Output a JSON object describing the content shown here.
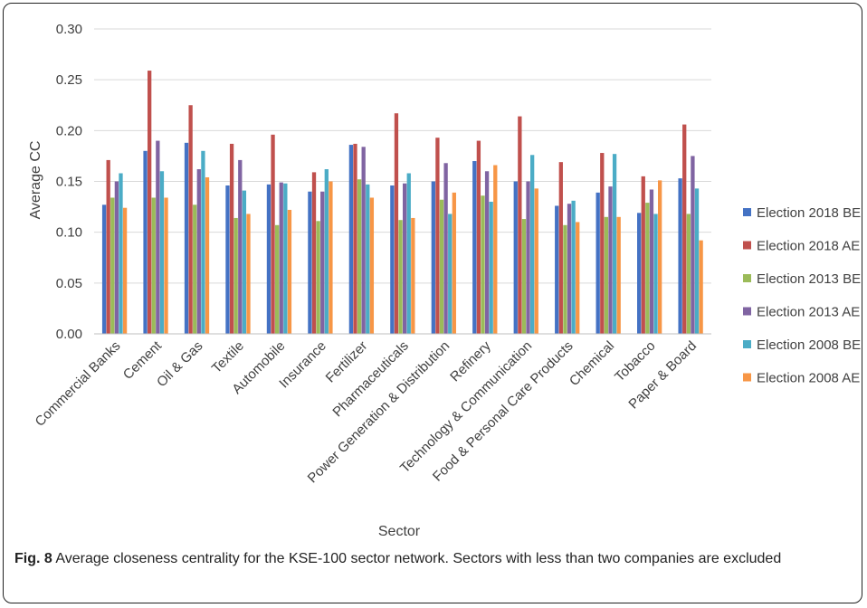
{
  "caption": {
    "label": "Fig. 8",
    "text": "Average closeness centrality for the KSE-100 sector network. Sectors with less than two companies are excluded"
  },
  "chart_data": {
    "type": "bar",
    "xlabel": "Sector",
    "ylabel": "Average CC",
    "ylim": [
      0,
      0.3
    ],
    "yticks": [
      "0.00",
      "0.05",
      "0.10",
      "0.15",
      "0.20",
      "0.25",
      "0.30"
    ],
    "grid": true,
    "legend_position": "right",
    "categories": [
      "Commercial Banks",
      "Cement",
      "Oil & Gas",
      "Textile",
      "Automobile",
      "Insurance",
      "Fertilizer",
      "Pharmaceuticals",
      "Power Generation & Distribution",
      "Refinery",
      "Technology & Communication",
      "Food & Personal Care Products",
      "Chemical",
      "Tobacco",
      "Paper & Board"
    ],
    "series": [
      {
        "name": "Election 2018 BE",
        "color": "#4472C4",
        "values": [
          0.127,
          0.18,
          0.188,
          0.146,
          0.147,
          0.14,
          0.186,
          0.146,
          0.15,
          0.17,
          0.15,
          0.126,
          0.139,
          0.119,
          0.153
        ]
      },
      {
        "name": "Election 2018 AE",
        "color": "#C0504D",
        "values": [
          0.171,
          0.259,
          0.225,
          0.187,
          0.196,
          0.159,
          0.187,
          0.217,
          0.193,
          0.19,
          0.214,
          0.169,
          0.178,
          0.155,
          0.206
        ]
      },
      {
        "name": "Election 2013 BE",
        "color": "#9BBB59",
        "values": [
          0.134,
          0.134,
          0.127,
          0.114,
          0.107,
          0.111,
          0.152,
          0.112,
          0.132,
          0.136,
          0.113,
          0.107,
          0.115,
          0.129,
          0.118
        ]
      },
      {
        "name": "Election 2013 AE",
        "color": "#8064A2",
        "values": [
          0.15,
          0.19,
          0.162,
          0.171,
          0.149,
          0.14,
          0.184,
          0.148,
          0.168,
          0.16,
          0.15,
          0.128,
          0.145,
          0.142,
          0.175
        ]
      },
      {
        "name": "Election 2008 BE",
        "color": "#4BACC6",
        "values": [
          0.158,
          0.16,
          0.18,
          0.141,
          0.148,
          0.162,
          0.147,
          0.158,
          0.118,
          0.13,
          0.176,
          0.131,
          0.177,
          0.118,
          0.143
        ]
      },
      {
        "name": "Election 2008 AE",
        "color": "#F79646",
        "values": [
          0.124,
          0.134,
          0.154,
          0.118,
          0.122,
          0.15,
          0.134,
          0.114,
          0.139,
          0.166,
          0.143,
          0.11,
          0.115,
          0.151,
          0.092
        ]
      }
    ]
  }
}
